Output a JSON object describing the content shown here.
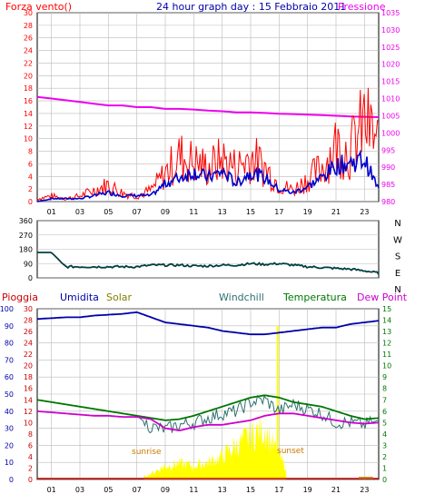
{
  "colors": {
    "wind": "#ff0000",
    "gust_avg": "#0000cc",
    "pressure": "#ee00ee",
    "direction": "#004040",
    "pioggia": "#cc0000",
    "umidita": "#0000aa",
    "solar": "#808000",
    "windchill": "#2e7070",
    "temperatura": "#007700",
    "dewpoint": "#cc00cc",
    "solar_fill": "#ffff00",
    "sun_label": "#cc7700"
  },
  "top": {
    "title": "24 hour graph day : 15 Febbraio 2011",
    "left_label": "Forza vento()",
    "right_label": "Pressione"
  },
  "legend": {
    "pioggia": "Pioggia",
    "umidita": "Umidita",
    "solar": "Solar",
    "windchill": "Windchill",
    "temperatura": "Temperatura",
    "dewpoint": "Dew Point"
  },
  "annotations": {
    "sunrise": "sunrise",
    "sunset": "sunset"
  },
  "chart_data": [
    {
      "type": "line",
      "title": "24 hour graph day : 15 Febbraio 2011",
      "x_ticks": [
        "01",
        "03",
        "05",
        "07",
        "09",
        "11",
        "13",
        "15",
        "17",
        "19",
        "21",
        "23"
      ],
      "x": [
        0,
        1,
        2,
        3,
        4,
        5,
        6,
        7,
        8,
        9,
        10,
        11,
        12,
        13,
        14,
        15,
        16,
        17,
        18,
        19,
        20,
        21,
        22,
        23,
        24
      ],
      "left_axis": {
        "label": "Forza vento()",
        "ylim": [
          0,
          30
        ],
        "ticks": [
          0,
          2,
          4,
          6,
          8,
          10,
          12,
          14,
          16,
          18,
          20,
          22,
          24,
          26,
          28,
          30
        ]
      },
      "right_axis": {
        "label": "Pressione",
        "ylim": [
          980,
          1035
        ],
        "ticks": [
          980,
          985,
          990,
          995,
          1000,
          1005,
          1010,
          1015,
          1020,
          1025,
          1030,
          1035
        ]
      },
      "series": [
        {
          "name": "wind_gust",
          "axis": "left",
          "values": [
            0.5,
            1,
            0.5,
            1,
            2,
            3,
            1.5,
            1,
            2,
            5,
            8,
            7,
            6,
            7.5,
            6,
            8,
            6,
            3,
            2,
            4,
            6,
            10,
            9,
            14,
            10
          ]
        },
        {
          "name": "wind_avg",
          "axis": "left",
          "values": [
            0,
            0.5,
            0.5,
            0.5,
            1,
            1.5,
            1,
            1,
            1,
            3,
            4,
            5,
            4,
            5,
            3,
            5,
            4,
            2,
            1.5,
            2.5,
            4,
            6,
            6.5,
            7,
            2
          ]
        },
        {
          "name": "pressure",
          "axis": "right",
          "values": [
            1010.5,
            1010,
            1009.5,
            1009,
            1008.5,
            1008,
            1008,
            1007.5,
            1007.5,
            1007,
            1007,
            1006.8,
            1006.5,
            1006.3,
            1006,
            1006,
            1005.8,
            1005.6,
            1005.5,
            1005.3,
            1005.2,
            1005,
            1004.8,
            1004.7,
            1004.6
          ]
        }
      ]
    },
    {
      "type": "line",
      "title": "",
      "x": [
        0,
        1,
        2,
        3,
        4,
        5,
        6,
        7,
        8,
        9,
        10,
        11,
        12,
        13,
        14,
        15,
        16,
        17,
        18,
        19,
        20,
        21,
        22,
        23,
        24
      ],
      "y_axis": {
        "ylim": [
          0,
          360
        ],
        "ticks": [
          0,
          90,
          180,
          270,
          360
        ]
      },
      "direction_labels": [
        "N",
        "W",
        "S",
        "E",
        "N"
      ],
      "series": [
        {
          "name": "wind_direction",
          "values": [
            160,
            160,
            70,
            70,
            70,
            70,
            70,
            70,
            80,
            80,
            80,
            75,
            75,
            80,
            80,
            90,
            85,
            90,
            80,
            70,
            65,
            60,
            55,
            45,
            30
          ]
        }
      ]
    },
    {
      "type": "line",
      "title": "",
      "x_ticks": [
        "01",
        "03",
        "05",
        "07",
        "09",
        "11",
        "13",
        "15",
        "17",
        "19",
        "21",
        "23"
      ],
      "x": [
        0,
        1,
        2,
        3,
        4,
        5,
        6,
        7,
        8,
        9,
        10,
        11,
        12,
        13,
        14,
        15,
        16,
        17,
        18,
        19,
        20,
        21,
        22,
        23,
        24
      ],
      "left_axis": {
        "ylim": [
          0,
          100
        ],
        "ticks": [
          0,
          10,
          20,
          30,
          40,
          50,
          60,
          70,
          80,
          90,
          100
        ]
      },
      "left2_axis": {
        "ylim": [
          0,
          30
        ],
        "ticks": [
          0,
          2,
          4,
          6,
          8,
          10,
          12,
          14,
          16,
          18,
          20,
          22,
          24,
          26,
          28,
          30
        ]
      },
      "right_axis": {
        "ylim": [
          0,
          15
        ],
        "ticks": [
          0,
          1,
          2,
          3,
          4,
          5,
          6,
          7,
          8,
          9,
          10,
          11,
          12,
          13,
          14,
          15
        ]
      },
      "series": [
        {
          "name": "Umidita",
          "values": [
            94,
            94.5,
            95,
            95,
            96,
            96.5,
            97,
            98,
            95,
            92,
            91,
            90,
            89,
            87,
            86,
            85,
            85,
            86,
            87,
            88,
            89,
            89,
            91,
            92,
            93
          ]
        },
        {
          "name": "Temperatura",
          "values": [
            7,
            6.8,
            6.6,
            6.4,
            6.2,
            6.0,
            5.8,
            5.6,
            5.4,
            5.2,
            5.3,
            5.6,
            6.0,
            6.4,
            6.8,
            7.2,
            7.4,
            7.2,
            6.8,
            6.6,
            6.4,
            6.0,
            5.6,
            5.3,
            5.4
          ]
        },
        {
          "name": "Windchill",
          "values": [
            7,
            6.8,
            6.6,
            6.4,
            6.2,
            6.0,
            5.8,
            5.6,
            4.6,
            4.4,
            4.8,
            5.0,
            5.4,
            5.8,
            6.0,
            6.8,
            7.0,
            6.0,
            6.6,
            6.2,
            5.8,
            5.0,
            5.0,
            4.8,
            5.2
          ]
        },
        {
          "name": "Dew Point",
          "values": [
            6.0,
            5.9,
            5.8,
            5.7,
            5.6,
            5.6,
            5.5,
            5.5,
            5.3,
            4.5,
            4.3,
            4.6,
            4.8,
            4.8,
            5.0,
            5.2,
            5.6,
            5.8,
            5.8,
            5.6,
            5.4,
            5.2,
            5.0,
            4.9,
            5.0
          ]
        },
        {
          "name": "Solar",
          "values": [
            0,
            0,
            0,
            0,
            0,
            0,
            0,
            0,
            0.5,
            1.2,
            1.4,
            1.2,
            1.5,
            2.0,
            3.0,
            3.8,
            4.5,
            2.0,
            0,
            0,
            0,
            0,
            0,
            0,
            0
          ]
        },
        {
          "name": "Pioggia",
          "values": [
            0,
            0,
            0,
            0,
            0,
            0,
            0,
            0,
            0,
            0,
            0,
            0,
            0,
            0,
            0,
            0,
            0,
            0,
            0,
            0,
            0,
            0,
            0,
            0,
            0
          ]
        }
      ]
    }
  ]
}
